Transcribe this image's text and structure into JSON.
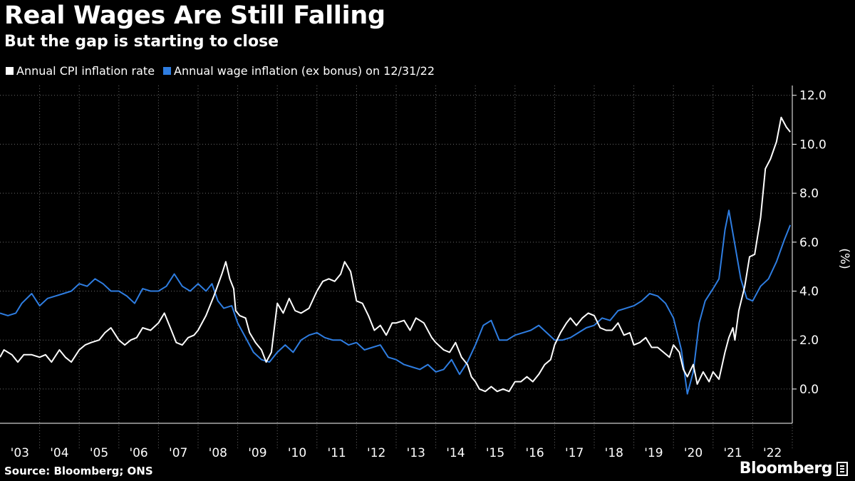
{
  "chart_data": {
    "type": "line",
    "title": "Real Wages Are Still Falling",
    "subtitle": "But the gap is starting to close",
    "ylabel": "(%)",
    "ylim": [
      -1.4,
      12.4
    ],
    "y_ticks": [
      "12.0",
      "10.0",
      "8.0",
      "6.0",
      "4.0",
      "2.0",
      "0.0"
    ],
    "y_tick_values": [
      12,
      10,
      8,
      6,
      4,
      2,
      0
    ],
    "x_range": [
      2003.0,
      2023.0
    ],
    "x_tick_labels": [
      "'03",
      "'04",
      "'05",
      "'06",
      "'07",
      "'08",
      "'09",
      "'10",
      "'11",
      "'12",
      "'13",
      "'14",
      "'15",
      "'16",
      "'17",
      "'18",
      "'19",
      "'20",
      "'21",
      "'22"
    ],
    "grid": true,
    "series": [
      {
        "name": "Annual CPI inflation rate",
        "color": "#ffffff",
        "points": [
          [
            2003.0,
            1.3
          ],
          [
            2003.1,
            1.6
          ],
          [
            2003.3,
            1.4
          ],
          [
            2003.45,
            1.1
          ],
          [
            2003.6,
            1.4
          ],
          [
            2003.8,
            1.4
          ],
          [
            2004.0,
            1.3
          ],
          [
            2004.15,
            1.4
          ],
          [
            2004.3,
            1.1
          ],
          [
            2004.5,
            1.6
          ],
          [
            2004.65,
            1.3
          ],
          [
            2004.8,
            1.1
          ],
          [
            2005.0,
            1.6
          ],
          [
            2005.15,
            1.8
          ],
          [
            2005.3,
            1.9
          ],
          [
            2005.5,
            2.0
          ],
          [
            2005.65,
            2.3
          ],
          [
            2005.8,
            2.5
          ],
          [
            2006.0,
            2.0
          ],
          [
            2006.15,
            1.8
          ],
          [
            2006.3,
            2.0
          ],
          [
            2006.45,
            2.1
          ],
          [
            2006.6,
            2.5
          ],
          [
            2006.8,
            2.4
          ],
          [
            2007.0,
            2.7
          ],
          [
            2007.15,
            3.1
          ],
          [
            2007.3,
            2.5
          ],
          [
            2007.45,
            1.9
          ],
          [
            2007.6,
            1.8
          ],
          [
            2007.75,
            2.1
          ],
          [
            2007.9,
            2.2
          ],
          [
            2008.0,
            2.4
          ],
          [
            2008.2,
            3.0
          ],
          [
            2008.4,
            3.8
          ],
          [
            2008.6,
            4.7
          ],
          [
            2008.7,
            5.2
          ],
          [
            2008.8,
            4.5
          ],
          [
            2008.9,
            4.1
          ],
          [
            2008.95,
            3.2
          ],
          [
            2009.05,
            3.0
          ],
          [
            2009.2,
            2.9
          ],
          [
            2009.3,
            2.3
          ],
          [
            2009.45,
            1.9
          ],
          [
            2009.6,
            1.6
          ],
          [
            2009.72,
            1.1
          ],
          [
            2009.85,
            1.5
          ],
          [
            2010.0,
            3.5
          ],
          [
            2010.15,
            3.1
          ],
          [
            2010.3,
            3.7
          ],
          [
            2010.45,
            3.2
          ],
          [
            2010.6,
            3.1
          ],
          [
            2010.8,
            3.3
          ],
          [
            2011.0,
            4.0
          ],
          [
            2011.15,
            4.4
          ],
          [
            2011.3,
            4.5
          ],
          [
            2011.45,
            4.4
          ],
          [
            2011.6,
            4.7
          ],
          [
            2011.7,
            5.2
          ],
          [
            2011.85,
            4.8
          ],
          [
            2012.0,
            3.6
          ],
          [
            2012.15,
            3.5
          ],
          [
            2012.3,
            3.0
          ],
          [
            2012.45,
            2.4
          ],
          [
            2012.6,
            2.6
          ],
          [
            2012.75,
            2.2
          ],
          [
            2012.9,
            2.7
          ],
          [
            2013.0,
            2.7
          ],
          [
            2013.2,
            2.8
          ],
          [
            2013.35,
            2.4
          ],
          [
            2013.5,
            2.9
          ],
          [
            2013.7,
            2.7
          ],
          [
            2013.9,
            2.1
          ],
          [
            2014.0,
            1.9
          ],
          [
            2014.2,
            1.6
          ],
          [
            2014.35,
            1.5
          ],
          [
            2014.5,
            1.9
          ],
          [
            2014.65,
            1.3
          ],
          [
            2014.8,
            1.0
          ],
          [
            2014.9,
            0.5
          ],
          [
            2015.0,
            0.3
          ],
          [
            2015.1,
            0.0
          ],
          [
            2015.25,
            -0.1
          ],
          [
            2015.4,
            0.1
          ],
          [
            2015.55,
            -0.1
          ],
          [
            2015.7,
            0.0
          ],
          [
            2015.85,
            -0.1
          ],
          [
            2016.0,
            0.3
          ],
          [
            2016.15,
            0.3
          ],
          [
            2016.3,
            0.5
          ],
          [
            2016.45,
            0.3
          ],
          [
            2016.6,
            0.6
          ],
          [
            2016.75,
            1.0
          ],
          [
            2016.9,
            1.2
          ],
          [
            2017.0,
            1.8
          ],
          [
            2017.15,
            2.3
          ],
          [
            2017.3,
            2.7
          ],
          [
            2017.4,
            2.9
          ],
          [
            2017.55,
            2.6
          ],
          [
            2017.7,
            2.9
          ],
          [
            2017.85,
            3.1
          ],
          [
            2018.0,
            3.0
          ],
          [
            2018.15,
            2.5
          ],
          [
            2018.3,
            2.4
          ],
          [
            2018.45,
            2.4
          ],
          [
            2018.6,
            2.7
          ],
          [
            2018.75,
            2.2
          ],
          [
            2018.9,
            2.3
          ],
          [
            2019.0,
            1.8
          ],
          [
            2019.15,
            1.9
          ],
          [
            2019.3,
            2.1
          ],
          [
            2019.45,
            1.7
          ],
          [
            2019.6,
            1.7
          ],
          [
            2019.75,
            1.5
          ],
          [
            2019.9,
            1.3
          ],
          [
            2020.0,
            1.8
          ],
          [
            2020.15,
            1.5
          ],
          [
            2020.25,
            0.8
          ],
          [
            2020.35,
            0.5
          ],
          [
            2020.5,
            1.0
          ],
          [
            2020.6,
            0.2
          ],
          [
            2020.75,
            0.7
          ],
          [
            2020.9,
            0.3
          ],
          [
            2021.0,
            0.7
          ],
          [
            2021.15,
            0.4
          ],
          [
            2021.3,
            1.5
          ],
          [
            2021.4,
            2.1
          ],
          [
            2021.5,
            2.5
          ],
          [
            2021.55,
            2.0
          ],
          [
            2021.65,
            3.2
          ],
          [
            2021.8,
            4.2
          ],
          [
            2021.92,
            5.4
          ],
          [
            2022.05,
            5.5
          ],
          [
            2022.2,
            7.0
          ],
          [
            2022.32,
            9.0
          ],
          [
            2022.45,
            9.4
          ],
          [
            2022.6,
            10.1
          ],
          [
            2022.72,
            11.1
          ],
          [
            2022.85,
            10.7
          ],
          [
            2022.95,
            10.5
          ]
        ]
      },
      {
        "name": "Annual wage inflation (ex bonus) on 12/31/22",
        "color": "#2e7de1",
        "points": [
          [
            2003.0,
            3.1
          ],
          [
            2003.2,
            3.0
          ],
          [
            2003.4,
            3.1
          ],
          [
            2003.55,
            3.5
          ],
          [
            2003.8,
            3.9
          ],
          [
            2004.0,
            3.4
          ],
          [
            2004.2,
            3.7
          ],
          [
            2004.4,
            3.8
          ],
          [
            2004.6,
            3.9
          ],
          [
            2004.8,
            4.0
          ],
          [
            2005.0,
            4.3
          ],
          [
            2005.2,
            4.2
          ],
          [
            2005.4,
            4.5
          ],
          [
            2005.6,
            4.3
          ],
          [
            2005.8,
            4.0
          ],
          [
            2006.0,
            4.0
          ],
          [
            2006.2,
            3.8
          ],
          [
            2006.4,
            3.5
          ],
          [
            2006.6,
            4.1
          ],
          [
            2006.8,
            4.0
          ],
          [
            2007.0,
            4.0
          ],
          [
            2007.2,
            4.2
          ],
          [
            2007.4,
            4.7
          ],
          [
            2007.6,
            4.2
          ],
          [
            2007.8,
            4.0
          ],
          [
            2008.0,
            4.3
          ],
          [
            2008.2,
            4.0
          ],
          [
            2008.35,
            4.3
          ],
          [
            2008.5,
            3.6
          ],
          [
            2008.65,
            3.3
          ],
          [
            2008.85,
            3.4
          ],
          [
            2009.0,
            2.7
          ],
          [
            2009.2,
            2.1
          ],
          [
            2009.4,
            1.5
          ],
          [
            2009.6,
            1.2
          ],
          [
            2009.8,
            1.1
          ],
          [
            2010.0,
            1.5
          ],
          [
            2010.2,
            1.8
          ],
          [
            2010.4,
            1.5
          ],
          [
            2010.6,
            2.0
          ],
          [
            2010.8,
            2.2
          ],
          [
            2011.0,
            2.3
          ],
          [
            2011.2,
            2.1
          ],
          [
            2011.4,
            2.0
          ],
          [
            2011.6,
            2.0
          ],
          [
            2011.8,
            1.8
          ],
          [
            2012.0,
            1.9
          ],
          [
            2012.2,
            1.6
          ],
          [
            2012.4,
            1.7
          ],
          [
            2012.6,
            1.8
          ],
          [
            2012.8,
            1.3
          ],
          [
            2013.0,
            1.2
          ],
          [
            2013.2,
            1.0
          ],
          [
            2013.4,
            0.9
          ],
          [
            2013.6,
            0.8
          ],
          [
            2013.8,
            1.0
          ],
          [
            2014.0,
            0.7
          ],
          [
            2014.2,
            0.8
          ],
          [
            2014.4,
            1.2
          ],
          [
            2014.6,
            0.6
          ],
          [
            2014.8,
            1.1
          ],
          [
            2015.0,
            1.8
          ],
          [
            2015.2,
            2.6
          ],
          [
            2015.4,
            2.8
          ],
          [
            2015.6,
            2.0
          ],
          [
            2015.8,
            2.0
          ],
          [
            2016.0,
            2.2
          ],
          [
            2016.2,
            2.3
          ],
          [
            2016.4,
            2.4
          ],
          [
            2016.6,
            2.6
          ],
          [
            2016.8,
            2.3
          ],
          [
            2017.0,
            2.0
          ],
          [
            2017.2,
            2.0
          ],
          [
            2017.4,
            2.1
          ],
          [
            2017.6,
            2.3
          ],
          [
            2017.8,
            2.5
          ],
          [
            2018.0,
            2.6
          ],
          [
            2018.2,
            2.9
          ],
          [
            2018.4,
            2.8
          ],
          [
            2018.6,
            3.2
          ],
          [
            2018.8,
            3.3
          ],
          [
            2019.0,
            3.4
          ],
          [
            2019.2,
            3.6
          ],
          [
            2019.4,
            3.9
          ],
          [
            2019.6,
            3.8
          ],
          [
            2019.8,
            3.5
          ],
          [
            2020.0,
            2.9
          ],
          [
            2020.2,
            1.6
          ],
          [
            2020.35,
            -0.2
          ],
          [
            2020.5,
            0.7
          ],
          [
            2020.65,
            2.7
          ],
          [
            2020.8,
            3.6
          ],
          [
            2021.0,
            4.1
          ],
          [
            2021.15,
            4.5
          ],
          [
            2021.3,
            6.5
          ],
          [
            2021.4,
            7.3
          ],
          [
            2021.55,
            5.9
          ],
          [
            2021.7,
            4.5
          ],
          [
            2021.85,
            3.7
          ],
          [
            2022.0,
            3.6
          ],
          [
            2022.2,
            4.2
          ],
          [
            2022.4,
            4.5
          ],
          [
            2022.6,
            5.2
          ],
          [
            2022.8,
            6.1
          ],
          [
            2022.95,
            6.7
          ]
        ]
      }
    ]
  },
  "footer": {
    "source": "Source: Bloomberg; ONS",
    "brand": "Bloomberg"
  }
}
